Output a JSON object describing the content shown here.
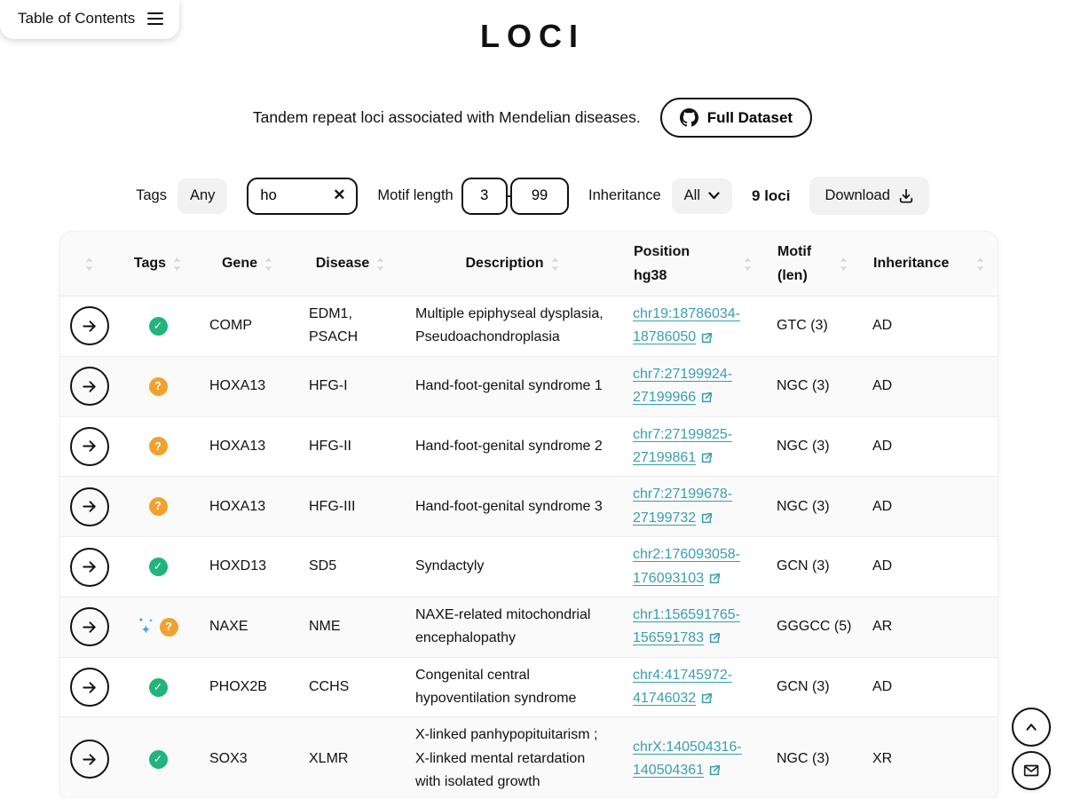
{
  "colors": {
    "link": "#3a9eae",
    "badge_check": "#21b47d",
    "badge_question": "#f0a12f",
    "sparkle": "#45a5e6"
  },
  "icons": {
    "toc": "menu-icon",
    "full_dataset": "github-icon",
    "search_clear": "close-icon",
    "inheritance": "chevron-down-icon",
    "download": "download-icon",
    "sort": "sort-arrows-icon",
    "row_open": "arrow-right-icon",
    "position": "external-link-icon",
    "tag_check": "check-circle-icon",
    "tag_question": "question-circle-icon",
    "tag_sparkle": "sparkles-icon",
    "scroll_top": "chevron-up-icon",
    "contact": "mail-icon"
  },
  "toc": {
    "label": "Table of Contents"
  },
  "header": {
    "title": "LOCI",
    "subtitle": "Tandem repeat loci associated with Mendelian diseases.",
    "full_dataset_label": "Full Dataset"
  },
  "filters": {
    "tags_label": "Tags",
    "tags_value": "Any",
    "search_value": "ho",
    "motif_length_label": "Motif length",
    "motif_min": "3",
    "motif_separator": "-",
    "motif_max": "99",
    "inheritance_label": "Inheritance",
    "inheritance_value": "All",
    "loci_count": "9 loci",
    "download_label": "Download"
  },
  "table": {
    "header": {
      "tags": "Tags",
      "gene": "Gene",
      "disease": "Disease",
      "description": "Description",
      "position_line1": "Position",
      "position_line2": "hg38",
      "motif_line1": "Motif",
      "motif_line2": "(len)",
      "inheritance": "Inheritance"
    },
    "rows": [
      {
        "tags": [
          "check"
        ],
        "gene": "COMP",
        "disease": "EDM1, PSACH",
        "description": "Multiple epiphyseal dysplasia, Pseudoachondroplasia",
        "position": "chr19:18786034-18786050",
        "motif": "GTC (3)",
        "inheritance": "AD"
      },
      {
        "tags": [
          "question"
        ],
        "gene": "HOXA13",
        "disease": "HFG-I",
        "description": "Hand-foot-genital syndrome 1",
        "position": "chr7:27199924-27199966",
        "motif": "NGC (3)",
        "inheritance": "AD"
      },
      {
        "tags": [
          "question"
        ],
        "gene": "HOXA13",
        "disease": "HFG-II",
        "description": "Hand-foot-genital syndrome 2",
        "position": "chr7:27199825-27199861",
        "motif": "NGC (3)",
        "inheritance": "AD"
      },
      {
        "tags": [
          "question"
        ],
        "gene": "HOXA13",
        "disease": "HFG-III",
        "description": "Hand-foot-genital syndrome 3",
        "position": "chr7:27199678-27199732",
        "motif": "NGC (3)",
        "inheritance": "AD"
      },
      {
        "tags": [
          "check"
        ],
        "gene": "HOXD13",
        "disease": "SD5",
        "description": "Syndactyly",
        "position": "chr2:176093058-176093103",
        "motif": "GCN (3)",
        "inheritance": "AD"
      },
      {
        "tags": [
          "sparkle",
          "question"
        ],
        "gene": "NAXE",
        "disease": "NME",
        "description": "NAXE-related mitochondrial encephalopathy",
        "position": "chr1:156591765-156591783",
        "motif": "GGGCC (5)",
        "inheritance": "AR"
      },
      {
        "tags": [
          "check"
        ],
        "gene": "PHOX2B",
        "disease": "CCHS",
        "description": "Congenital central hypoventilation syndrome",
        "position": "chr4:41745972-41746032",
        "motif": "GCN (3)",
        "inheritance": "AD"
      },
      {
        "tags": [
          "check"
        ],
        "gene": "SOX3",
        "disease": "XLMR",
        "description": "X-linked panhypopituitarism ; X-linked mental retardation with isolated growth",
        "position": "chrX:140504316-140504361",
        "motif": "NGC (3)",
        "inheritance": "XR"
      }
    ]
  }
}
